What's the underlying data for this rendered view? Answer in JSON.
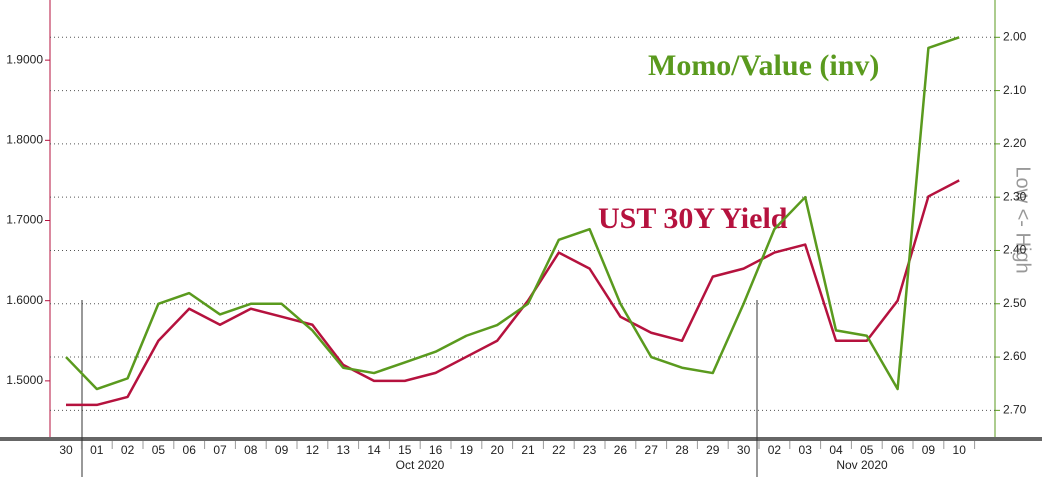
{
  "chart_data": {
    "type": "line",
    "annotations": [
      "Momo/Value (inv)",
      "UST 30Y Yield"
    ],
    "y2_label": "Low <- High",
    "categories": [
      "30",
      "01",
      "02",
      "05",
      "06",
      "07",
      "08",
      "09",
      "12",
      "13",
      "14",
      "15",
      "16",
      "19",
      "20",
      "21",
      "22",
      "23",
      "26",
      "27",
      "28",
      "29",
      "30",
      "02",
      "03",
      "04",
      "05",
      "06",
      "09",
      "10"
    ],
    "month_labels": [
      "Oct 2020",
      "Nov 2020"
    ],
    "series": [
      {
        "name": "UST 30Y Yield",
        "color": "#b5123e",
        "axis": "y",
        "values": [
          1.47,
          1.47,
          1.48,
          1.55,
          1.59,
          1.57,
          1.59,
          1.58,
          1.57,
          1.52,
          1.5,
          1.5,
          1.51,
          1.53,
          1.55,
          1.6,
          1.66,
          1.64,
          1.58,
          1.56,
          1.55,
          1.63,
          1.64,
          1.66,
          1.67,
          1.55,
          1.55,
          1.6,
          1.73,
          1.75
        ]
      },
      {
        "name": "Momo/Value (inv)",
        "color": "#5a9a1e",
        "axis": "y2",
        "values": [
          2.6,
          2.66,
          2.64,
          2.5,
          2.48,
          2.52,
          2.5,
          2.5,
          2.55,
          2.62,
          2.63,
          2.61,
          2.59,
          2.56,
          2.54,
          2.5,
          2.38,
          2.36,
          2.5,
          2.6,
          2.62,
          2.63,
          2.5,
          2.36,
          2.3,
          2.55,
          2.56,
          2.66,
          2.02,
          2.0
        ]
      }
    ],
    "ylim": [
      1.43,
      1.975
    ],
    "yticks": [
      {
        "value": 1.5,
        "label": "1.5000"
      },
      {
        "value": 1.6,
        "label": "1.6000"
      },
      {
        "value": 1.7,
        "label": "1.7000"
      },
      {
        "value": 1.8,
        "label": "1.8000"
      },
      {
        "value": 1.9,
        "label": "1.9000"
      }
    ],
    "y2lim": [
      1.93,
      2.75
    ],
    "y2_inverted": true,
    "y2ticks": [
      {
        "value": 2.0,
        "label": "2.00"
      },
      {
        "value": 2.1,
        "label": "2.10"
      },
      {
        "value": 2.2,
        "label": "2.20"
      },
      {
        "value": 2.3,
        "label": "2.30"
      },
      {
        "value": 2.4,
        "label": "2.40"
      },
      {
        "value": 2.5,
        "label": "2.50"
      },
      {
        "value": 2.6,
        "label": "2.60"
      },
      {
        "value": 2.7,
        "label": "2.70"
      }
    ],
    "grid": true
  }
}
